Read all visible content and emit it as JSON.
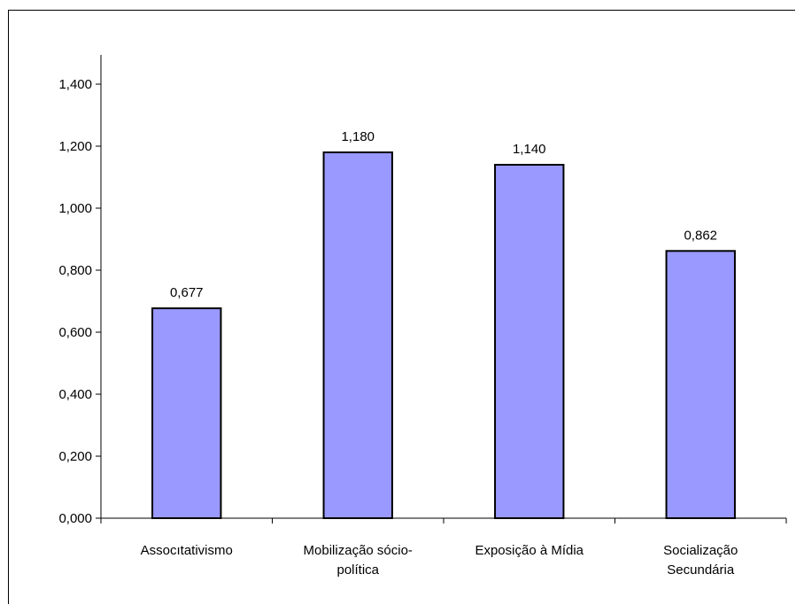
{
  "chart_data": {
    "type": "bar",
    "title": "",
    "xlabel": "",
    "ylabel": "",
    "categories": [
      [
        "Assocıtativismo"
      ],
      [
        "Mobilização sócio-",
        "política"
      ],
      [
        "Exposição à Mídia"
      ],
      [
        "Socialização",
        "Secundária"
      ]
    ],
    "values": [
      0.677,
      1.18,
      1.14,
      0.862
    ],
    "data_labels": [
      "0,677",
      "1,180",
      "1,140",
      "0,862"
    ],
    "ylim": [
      0,
      1.4
    ],
    "yticks": [
      0,
      0.2,
      0.4,
      0.6,
      0.8,
      1.0,
      1.2,
      1.4
    ],
    "ytick_labels": [
      "0,000",
      "0,200",
      "0,400",
      "0,600",
      "0,800",
      "1,000",
      "1,200",
      "1,400"
    ],
    "grid": false,
    "legend": "none",
    "colors": {
      "bar_fill": "#9999ff",
      "bar_stroke": "#000000",
      "axis": "#000000"
    }
  }
}
